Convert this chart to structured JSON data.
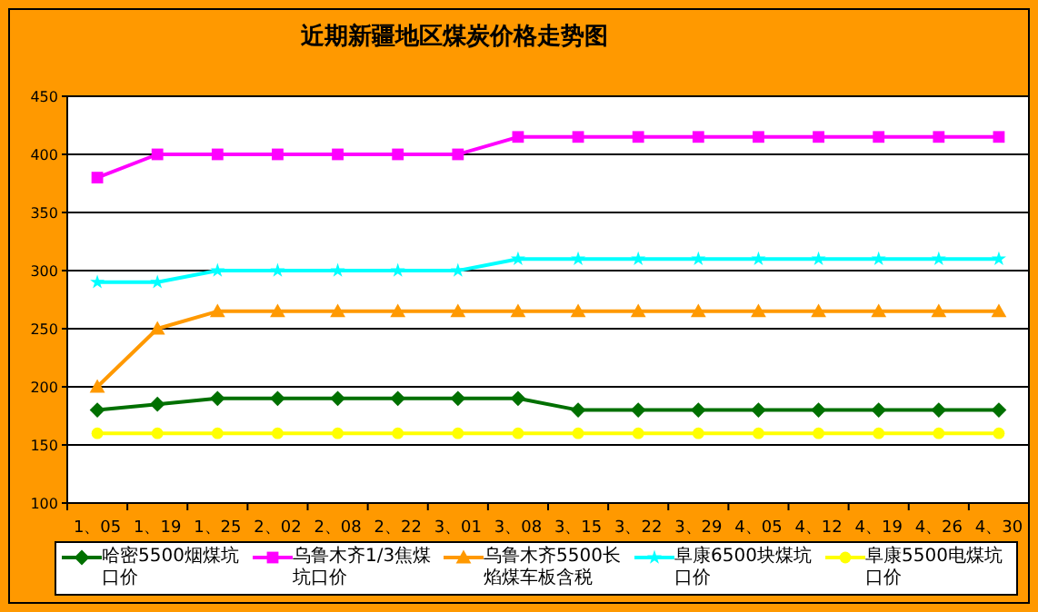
{
  "chart_data": {
    "type": "line",
    "title": "近期新疆地区煤炭价格走势图",
    "categories": [
      "1、05",
      "1、19",
      "1、25",
      "2、02",
      "2、08",
      "2、22",
      "3、01",
      "3、08",
      "3、15",
      "3、22",
      "3、29",
      "4、05",
      "4、12",
      "4、19",
      "4、26",
      "4、30"
    ],
    "series": [
      {
        "name": "哈密5500烟煤坑口价",
        "color": "#007000",
        "marker": "diamond",
        "values": [
          180,
          185,
          190,
          190,
          190,
          190,
          190,
          190,
          180,
          180,
          180,
          180,
          180,
          180,
          180,
          180
        ]
      },
      {
        "name": "乌鲁木齐1/3焦煤坑口价",
        "color": "#ff00ff",
        "marker": "square",
        "values": [
          380,
          400,
          400,
          400,
          400,
          400,
          400,
          415,
          415,
          415,
          415,
          415,
          415,
          415,
          415,
          415
        ]
      },
      {
        "name": "乌鲁木齐5500长焰煤车板含税",
        "color": "#ff9900",
        "marker": "triangle",
        "values": [
          200,
          250,
          265,
          265,
          265,
          265,
          265,
          265,
          265,
          265,
          265,
          265,
          265,
          265,
          265,
          265
        ]
      },
      {
        "name": "阜康6500块煤坑口价",
        "color": "#00ffff",
        "marker": "star",
        "values": [
          290,
          290,
          300,
          300,
          300,
          300,
          300,
          310,
          310,
          310,
          310,
          310,
          310,
          310,
          310,
          310
        ]
      },
      {
        "name": "阜康5500电煤坑口价",
        "color": "#ffff00",
        "marker": "circle",
        "values": [
          160,
          160,
          160,
          160,
          160,
          160,
          160,
          160,
          160,
          160,
          160,
          160,
          160,
          160,
          160,
          160
        ]
      }
    ],
    "ylim": [
      100,
      450
    ],
    "yticks": [
      100,
      150,
      200,
      250,
      300,
      350,
      400,
      450
    ],
    "grid": "y",
    "legend": "bottom",
    "line_style": "solid"
  }
}
